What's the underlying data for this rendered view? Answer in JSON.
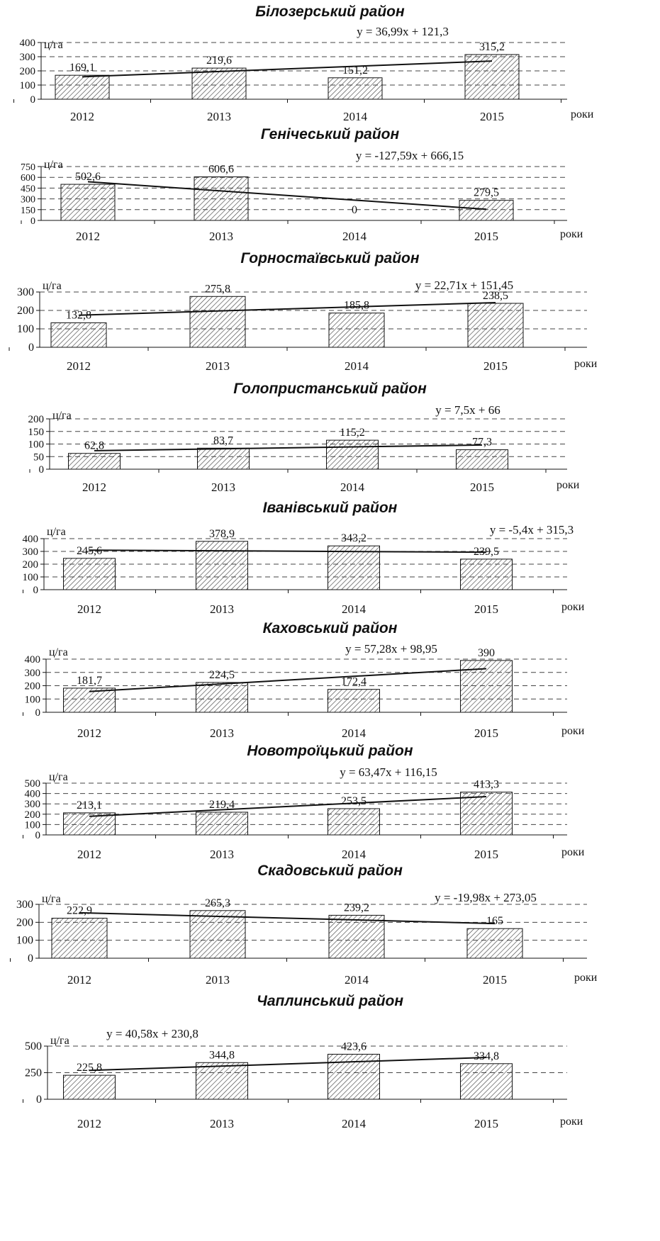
{
  "colors": {
    "axis": "#111111",
    "grid": "#444444",
    "hatch": "#444444",
    "bar_fill": "#ffffff",
    "trend": "#111111"
  },
  "chart_data": [
    {
      "type": "bar",
      "title": "Білозерський район",
      "ylabel": "ц/га",
      "xlabel": "роки",
      "categories": [
        "2012",
        "2013",
        "2014",
        "2015"
      ],
      "values": [
        169.1,
        219.6,
        151.2,
        315.2
      ],
      "value_labels": [
        "169,1",
        "219,6",
        "151,2",
        "315,2"
      ],
      "ylim": [
        0,
        400
      ],
      "yticks": [
        0,
        100,
        200,
        300,
        400
      ],
      "grid": true,
      "trendline": {
        "equation": "y = 36,99x + 121,3",
        "slope": 36.99,
        "intercept": 121.3
      }
    },
    {
      "type": "bar",
      "title": "Генічеський район",
      "ylabel": "ц/га",
      "xlabel": "роки",
      "categories": [
        "2012",
        "2013",
        "2014",
        "2015"
      ],
      "values": [
        502.6,
        606.6,
        0,
        279.5
      ],
      "value_labels": [
        "502,6",
        "606,6",
        "0",
        "279,5"
      ],
      "ylim": [
        0,
        750
      ],
      "yticks": [
        0,
        150,
        300,
        450,
        600,
        750
      ],
      "grid": true,
      "trendline": {
        "equation": "y = -127,59x + 666,15",
        "slope": -127.59,
        "intercept": 666.15
      }
    },
    {
      "type": "bar",
      "title": "Горностаївський район",
      "ylabel": "ц/га",
      "xlabel": "роки",
      "categories": [
        "2012",
        "2013",
        "2014",
        "2015"
      ],
      "values": [
        132.8,
        275.8,
        185.8,
        238.5
      ],
      "value_labels": [
        "132,8",
        "275,8",
        "185,8",
        "238,5"
      ],
      "ylim": [
        0,
        300
      ],
      "yticks": [
        0,
        100,
        200,
        300
      ],
      "grid": true,
      "trendline": {
        "equation": "y = 22,71x + 151,45",
        "slope": 22.71,
        "intercept": 151.45
      }
    },
    {
      "type": "bar",
      "title": "Голопристанський район",
      "ylabel": "ц/га",
      "xlabel": "роки",
      "categories": [
        "2012",
        "2013",
        "2014",
        "2015"
      ],
      "values": [
        62.8,
        83.7,
        115.2,
        77.3
      ],
      "value_labels": [
        "62,8",
        "83,7",
        "115,2",
        "77,3"
      ],
      "ylim": [
        0,
        200
      ],
      "yticks": [
        0,
        50,
        100,
        150,
        200
      ],
      "grid": true,
      "trendline": {
        "equation": "y = 7,5x + 66",
        "slope": 7.5,
        "intercept": 66
      }
    },
    {
      "type": "bar",
      "title": "Іванівський район",
      "ylabel": "ц/га",
      "xlabel": "роки",
      "categories": [
        "2012",
        "2013",
        "2014",
        "2015"
      ],
      "values": [
        245.6,
        378.9,
        343.2,
        239.5
      ],
      "value_labels": [
        "245,6",
        "378,9",
        "343,2",
        "239,5"
      ],
      "ylim": [
        0,
        400
      ],
      "yticks": [
        0,
        100,
        200,
        300,
        400
      ],
      "grid": true,
      "trendline": {
        "equation": "y = -5,4x + 315,3",
        "slope": -5.4,
        "intercept": 315.3
      }
    },
    {
      "type": "bar",
      "title": "Каховський район",
      "ylabel": "ц/га",
      "xlabel": "роки",
      "categories": [
        "2012",
        "2013",
        "2014",
        "2015"
      ],
      "values": [
        181.7,
        224.5,
        172.4,
        390
      ],
      "value_labels": [
        "181,7",
        "224,5",
        "172,4",
        "390"
      ],
      "ylim": [
        0,
        400
      ],
      "yticks": [
        0,
        100,
        200,
        300,
        400
      ],
      "grid": true,
      "trendline": {
        "equation": "y = 57,28x + 98,95",
        "slope": 57.28,
        "intercept": 98.95
      }
    },
    {
      "type": "bar",
      "title": "Новотроїцький район",
      "ylabel": "ц/га",
      "xlabel": "роки",
      "categories": [
        "2012",
        "2013",
        "2014",
        "2015"
      ],
      "values": [
        213.1,
        219.4,
        253.5,
        413.3
      ],
      "value_labels": [
        "213,1",
        "219,4",
        "253,5",
        "413,3"
      ],
      "ylim": [
        0,
        500
      ],
      "yticks": [
        0,
        100,
        200,
        300,
        400,
        500
      ],
      "grid": true,
      "trendline": {
        "equation": "y = 63,47x + 116,15",
        "slope": 63.47,
        "intercept": 116.15
      }
    },
    {
      "type": "bar",
      "title": "Скадовський район",
      "ylabel": "ц/га",
      "xlabel": "роки",
      "categories": [
        "2012",
        "2013",
        "2014",
        "2015"
      ],
      "values": [
        222.9,
        265.3,
        239.2,
        165
      ],
      "value_labels": [
        "222,9",
        "265,3",
        "239,2",
        "165"
      ],
      "ylim": [
        0,
        300
      ],
      "yticks": [
        0,
        100,
        200,
        300
      ],
      "grid": true,
      "trendline": {
        "equation": "y = -19,98x + 273,05",
        "slope": -19.98,
        "intercept": 273.05
      }
    },
    {
      "type": "bar",
      "title": "Чаплинський район",
      "ylabel": "ц/га",
      "xlabel": "роки",
      "categories": [
        "2012",
        "2013",
        "2014",
        "2015"
      ],
      "values": [
        225.8,
        344.8,
        423.6,
        334.8
      ],
      "value_labels": [
        "225,8",
        "344,8",
        "423,6",
        "334,8"
      ],
      "ylim": [
        0,
        500
      ],
      "yticks": [
        0,
        250,
        500
      ],
      "grid": true,
      "trendline": {
        "equation": "y = 40,58x + 230,8",
        "slope": 40.58,
        "intercept": 230.8
      }
    }
  ]
}
